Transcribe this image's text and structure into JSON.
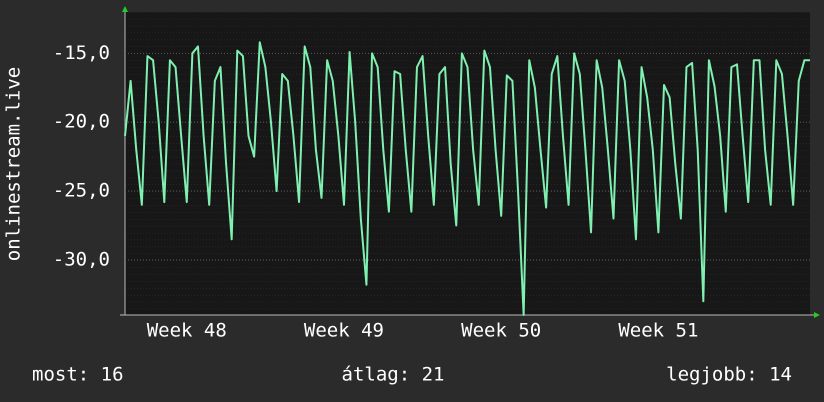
{
  "chart_data": {
    "type": "line",
    "y_label": "onlinestream.live",
    "color": "#7ff0b0",
    "values": [
      -21,
      -17,
      -22,
      -26,
      -15.2,
      -15.5,
      -20,
      -25.8,
      -15.5,
      -16,
      -21,
      -25.8,
      -15,
      -14.5,
      -21,
      -26,
      -17,
      -16,
      -23,
      -28.5,
      -14.8,
      -15.2,
      -21,
      -22.5,
      -14.2,
      -16,
      -20,
      -25,
      -16.5,
      -17,
      -21,
      -25.8,
      -14.5,
      -16,
      -22,
      -25.5,
      -15.5,
      -17,
      -21,
      -26,
      -14.9,
      -20,
      -27,
      -31.8,
      -15,
      -16,
      -22,
      -26.5,
      -16.3,
      -16.5,
      -22,
      -26.5,
      -16,
      -15.2,
      -21,
      -26,
      -16.5,
      -16,
      -23,
      -27.5,
      -15,
      -16,
      -22,
      -26,
      -14.8,
      -16,
      -22,
      -26.8,
      -16.6,
      -17,
      -25,
      -34,
      -15.5,
      -17.5,
      -22,
      -26.2,
      -16.5,
      -15.2,
      -21,
      -26,
      -15,
      -16.5,
      -22,
      -28,
      -15.5,
      -17.5,
      -22,
      -27,
      -15.5,
      -17,
      -22,
      -28.5,
      -16,
      -18.2,
      -22,
      -28,
      -17.3,
      -18.2,
      -23,
      -27,
      -16,
      -15.7,
      -22,
      -33,
      -15.5,
      -17.4,
      -21,
      -26.5,
      -16,
      -15.8,
      -21,
      -25.8,
      -15.5,
      -15.5,
      -22,
      -26,
      -15.5,
      -16.5,
      -21,
      -26,
      -17,
      -15.5,
      -15.5
    ],
    "xlim": [
      0,
      122
    ],
    "xticks": [
      {
        "value": 11,
        "label": "Week 48"
      },
      {
        "value": 39,
        "label": "Week 49"
      },
      {
        "value": 67,
        "label": "Week 50"
      },
      {
        "value": 95,
        "label": "Week 51"
      }
    ],
    "ylim": [
      -34,
      -12
    ],
    "yticks": [
      {
        "value": -15,
        "label": "-15,0"
      },
      {
        "value": -20,
        "label": "-20,0"
      },
      {
        "value": -25,
        "label": "-25,0"
      },
      {
        "value": -30,
        "label": "-30,0"
      }
    ],
    "grid": true,
    "stats": [
      "most: 16",
      "átlag: 21",
      "legjobb: 14"
    ]
  }
}
